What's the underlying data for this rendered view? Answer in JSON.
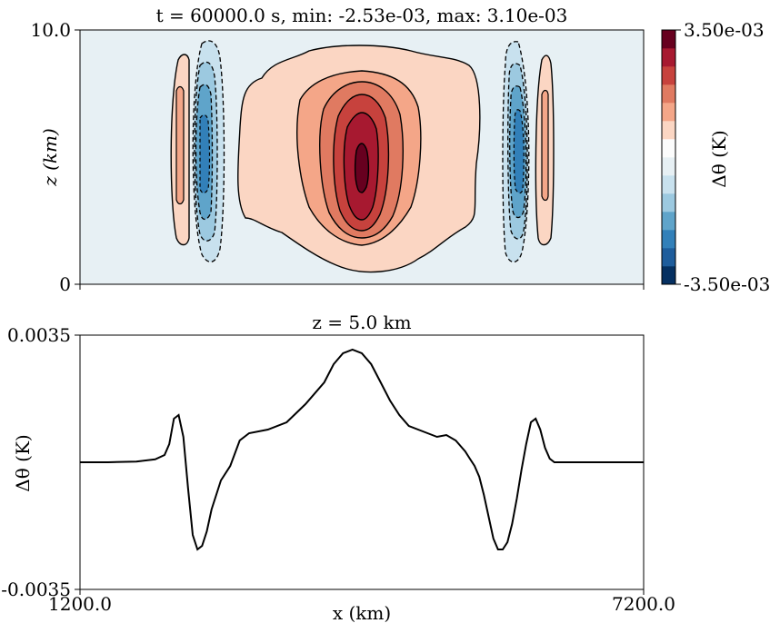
{
  "chart_data": [
    {
      "type": "heatmap",
      "title": "t = 60000.0 s, min: -2.53e-03, max: 3.10e-03",
      "ylabel": "z (km)",
      "xlim": [
        1200.0,
        7200.0
      ],
      "ylim": [
        0,
        10.0
      ],
      "yticks": [
        "0",
        "10.0"
      ],
      "colorbar": {
        "label": "Δθ (K)",
        "range": [
          -0.0035,
          0.0035
        ],
        "tick_labels": [
          "-3.50e-03",
          "3.50e-03"
        ],
        "levels": 14,
        "colors": [
          "#053061",
          "#1e5d9c",
          "#3280b9",
          "#5fa4ca",
          "#9cc9e0",
          "#c8e1ee",
          "#e7f0f4",
          "#fcfcfc",
          "#fbd6c3",
          "#f4a688",
          "#e07a61",
          "#c7423d",
          "#a71930",
          "#67001f"
        ]
      },
      "features": [
        {
          "kind": "positive-core",
          "x_km": 4200,
          "z_km": 5.0,
          "peak": 0.0031
        },
        {
          "kind": "negative-band",
          "x_km": 2500,
          "z_km": 5.0,
          "peak": -0.00253
        },
        {
          "kind": "negative-band",
          "x_km": 5900,
          "z_km": 5.0,
          "peak": -0.00253
        },
        {
          "kind": "positive-band",
          "x_km": 2270,
          "z_km": 5.0,
          "peak": 0.0012
        },
        {
          "kind": "positive-band",
          "x_km": 6130,
          "z_km": 5.0,
          "peak": 0.0012
        }
      ]
    },
    {
      "type": "line",
      "title": "z = 5.0 km",
      "xlabel": "x (km)",
      "ylabel": "Δθ (K)",
      "xlim": [
        1200.0,
        7200.0
      ],
      "ylim": [
        -0.0035,
        0.0035
      ],
      "xticks": [
        "1200.0",
        "7200.0"
      ],
      "yticks": [
        "-0.0035",
        "0.0035"
      ],
      "series": [
        {
          "x": [
            1200,
            1500,
            1800,
            2000,
            2100,
            2150,
            2200,
            2250,
            2300,
            2350,
            2400,
            2450,
            2500,
            2550,
            2600,
            2700,
            2800,
            2900,
            3000,
            3200,
            3400,
            3600,
            3800,
            3900,
            4000,
            4100,
            4200,
            4300,
            4400,
            4500,
            4600,
            4700,
            4900,
            5000,
            5100,
            5200,
            5300,
            5350,
            5400,
            5450,
            5500,
            5550,
            5600,
            5650,
            5700,
            5750,
            5800,
            5850,
            5900,
            5950,
            6000,
            6050,
            6100,
            6150,
            6200,
            6250,
            6300,
            6400,
            6600,
            7200
          ],
          "y": [
            0,
            0,
            2e-05,
            8e-05,
            0.0002,
            0.0005,
            0.0012,
            0.0013,
            0.0007,
            -0.0007,
            -0.002,
            -0.0024,
            -0.0023,
            -0.0019,
            -0.0013,
            -0.0005,
            -0.0001,
            0.0006,
            0.0008,
            0.0009,
            0.0011,
            0.0016,
            0.0022,
            0.0027,
            0.003,
            0.0031,
            0.003,
            0.0027,
            0.0022,
            0.0017,
            0.0013,
            0.001,
            0.0008,
            0.0007,
            0.00075,
            0.0006,
            0.0003,
            0.0001,
            -0.0001,
            -0.0004,
            -0.0009,
            -0.0015,
            -0.0021,
            -0.0024,
            -0.0024,
            -0.0022,
            -0.0017,
            -0.001,
            -0.0002,
            0.0005,
            0.0011,
            0.0012,
            0.0009,
            0.0004,
            0.0001,
            0,
            0,
            0,
            0,
            0
          ]
        }
      ]
    }
  ]
}
